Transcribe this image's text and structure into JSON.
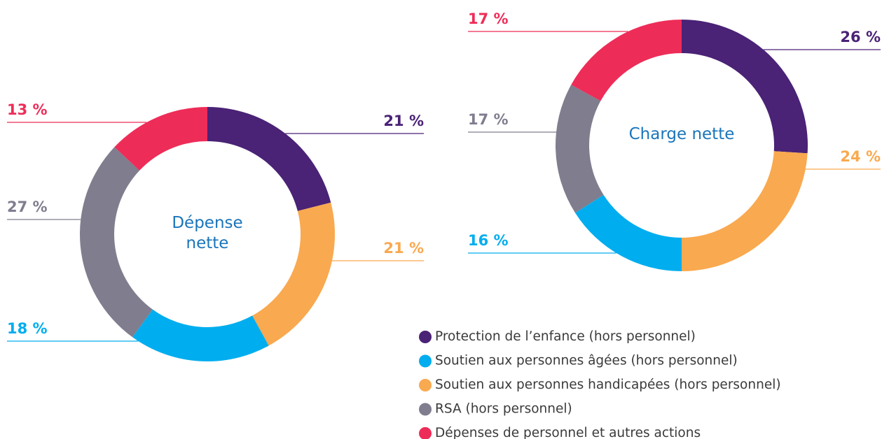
{
  "chart_data": {
    "type": "pie",
    "categories": [
      "Protection de l’enfance (hors personnel)",
      "Soutien aux personnes âgées (hors personnel)",
      "Soutien aux personnes handicapées (hors personnel)",
      "RSA (hors personnel)",
      "Dépenses de personnel et autres actions"
    ],
    "colors": [
      "#4a2276",
      "#00adef",
      "#f9a94f",
      "#7f7d8e",
      "#ee2c58"
    ],
    "series": [
      {
        "name": "Dépense nette",
        "values": [
          21,
          18,
          21,
          27,
          13
        ],
        "value_labels": [
          "21 %",
          "18 %",
          "21 %",
          "27 %",
          "13 %"
        ]
      },
      {
        "name": "Charge nette",
        "values": [
          26,
          16,
          24,
          17,
          17
        ],
        "value_labels": [
          "26 %",
          "16 %",
          "24 %",
          "17 %",
          "17 %"
        ]
      }
    ]
  }
}
